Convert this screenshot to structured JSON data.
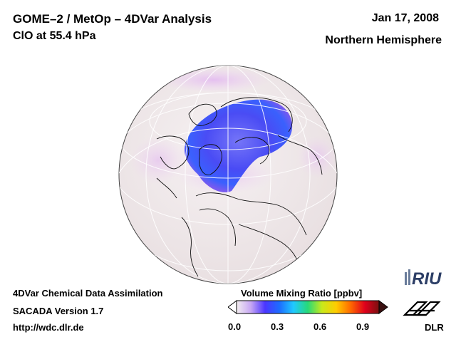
{
  "header": {
    "title": "GOME–2 / MetOp – 4DVar Analysis",
    "subtitle": "ClO at 55.4 hPa",
    "date": "Jan 17, 2008",
    "region": "Northern Hemisphere"
  },
  "footer": {
    "line1": "4DVar Chemical Data Assimilation",
    "line2": "SACADA Version 1.7",
    "line3": "http://wdc.dlr.de"
  },
  "colorbar": {
    "label": "Volume Mixing Ratio [ppbv]",
    "ticks": [
      "0.0",
      "0.3",
      "0.6",
      "0.9"
    ],
    "range": [
      0.0,
      1.0
    ],
    "colors": [
      "#f3eef0",
      "#c7a7f4",
      "#4b36ff",
      "#1d6cff",
      "#20c9ff",
      "#27d978",
      "#c9e91b",
      "#ffcc00",
      "#ff6a00",
      "#e0001c",
      "#7a1010"
    ]
  },
  "logos": {
    "riu": "RIU",
    "dlr": "DLR"
  },
  "map": {
    "projection": "orthographic",
    "background_color": "#f0e9ea"
  }
}
